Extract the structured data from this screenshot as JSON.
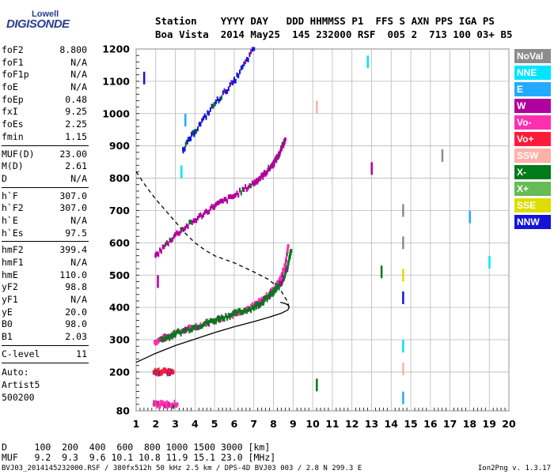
{
  "brand": {
    "top": "Lowell",
    "main": "DIGISONDE"
  },
  "header": {
    "line1": "Station    YYYY DAY   DDD HHMMSS P1  FFS S AXN PPS IGA PS",
    "line2": "Boa Vista  2014 May25  145 232000 RSF  005 2  713 100 03+ B5"
  },
  "params": {
    "group1": [
      {
        "label": "foF2",
        "value": "8.800"
      },
      {
        "label": "foF1",
        "value": "N/A"
      },
      {
        "label": "foF1p",
        "value": "N/A"
      },
      {
        "label": "foE",
        "value": "N/A"
      },
      {
        "label": "foEp",
        "value": "0.48"
      },
      {
        "label": "fxI",
        "value": "9.25"
      },
      {
        "label": "foEs",
        "value": "2.25"
      },
      {
        "label": "fmin",
        "value": "1.15"
      }
    ],
    "group2": [
      {
        "label": "MUF(D)",
        "value": "23.00"
      },
      {
        "label": "M(D)",
        "value": "2.61"
      },
      {
        "label": "D",
        "value": "N/A"
      }
    ],
    "group3": [
      {
        "label": "h`F",
        "value": "307.0"
      },
      {
        "label": "h`F2",
        "value": "307.0"
      },
      {
        "label": "h`E",
        "value": "N/A"
      },
      {
        "label": "h`Es",
        "value": "97.5"
      }
    ],
    "group4": [
      {
        "label": "hmF2",
        "value": "399.4"
      },
      {
        "label": "hmF1",
        "value": "N/A"
      },
      {
        "label": "hmE",
        "value": "110.0"
      },
      {
        "label": "yF2",
        "value": "98.8"
      },
      {
        "label": "yF1",
        "value": "N/A"
      },
      {
        "label": "yE",
        "value": "20.0"
      },
      {
        "label": "B0",
        "value": "98.0"
      },
      {
        "label": "B1",
        "value": "2.03"
      }
    ],
    "group5": [
      {
        "label": "C-level",
        "value": "11"
      }
    ],
    "auto": [
      "Auto:",
      "Artist5",
      "500200"
    ]
  },
  "legend": [
    {
      "label": "NoVal",
      "color": "#8c8c8c"
    },
    {
      "label": "NNE",
      "color": "#00e5ff"
    },
    {
      "label": "E",
      "color": "#22aaff"
    },
    {
      "label": "W",
      "color": "#b0009e"
    },
    {
      "label": "Vo-",
      "color": "#ff2fae"
    },
    {
      "label": "Vo+",
      "color": "#ff1a3a"
    },
    {
      "label": "SSW",
      "color": "#ffb0a8"
    },
    {
      "label": "X-",
      "color": "#007a1a"
    },
    {
      "label": "X+",
      "color": "#66bb55"
    },
    {
      "label": "SSE",
      "color": "#dddd00"
    },
    {
      "label": "NNW",
      "color": "#1414d8"
    }
  ],
  "bottom": {
    "line1": "D     100  200  400  600  800 1000 1500 3000 [km]",
    "line2": "MUF   9.2  9.3  9.6 10.1 10.8 11.9 15.1 23.0 [MHz]"
  },
  "footer": "BVJ03_2014145232000.RSF / 380fx512h 50 kHz 2.5 km / DPS-4D BVJ03 003 / 2.8 N 299.3 E",
  "version": "Ion2Png v. 1.3.17",
  "chart_data": {
    "type": "scatter",
    "x_ticks": [
      1,
      2,
      3,
      4,
      5,
      6,
      7,
      8,
      9,
      10,
      11,
      12,
      13,
      14,
      15,
      16,
      17,
      18,
      19,
      20
    ],
    "y_ticks": [
      80,
      200,
      300,
      400,
      500,
      600,
      700,
      800,
      900,
      1000,
      1100,
      1200
    ],
    "xlim": [
      1,
      20
    ],
    "ylim": [
      80,
      1200
    ],
    "grid": true,
    "legend_position": "right",
    "series": [
      {
        "name": "O-trace (Vo-)",
        "color": "#ff2fae",
        "x": [
          1.95,
          2.5,
          3.0,
          4.0,
          5.0,
          6.0,
          7.0,
          7.5,
          8.0,
          8.3,
          8.6,
          8.75
        ],
        "y": [
          293,
          307,
          320,
          340,
          360,
          380,
          405,
          425,
          455,
          480,
          530,
          590
        ]
      },
      {
        "name": "X-trace (X-)",
        "color": "#007a1a",
        "x": [
          2.3,
          3.0,
          4.0,
          5.0,
          6.0,
          7.0,
          7.5,
          8.0,
          8.4,
          8.7,
          8.9
        ],
        "y": [
          300,
          318,
          340,
          360,
          380,
          400,
          420,
          445,
          475,
          520,
          575
        ]
      },
      {
        "name": "2nd hop (W)",
        "color": "#b0009e",
        "x": [
          2.0,
          3.0,
          4.0,
          5.0,
          6.0,
          7.0,
          7.5,
          8.0,
          8.3,
          8.6
        ],
        "y": [
          560,
          625,
          670,
          715,
          745,
          785,
          810,
          845,
          875,
          920
        ]
      },
      {
        "name": "3rd hop (NNW)",
        "color": "#1414d8",
        "x": [
          3.4,
          4.0,
          5.0,
          6.0,
          7.0
        ],
        "y": [
          890,
          945,
          1030,
          1100,
          1200
        ]
      },
      {
        "name": "Es trace",
        "color": "#ff1a3a",
        "x": [
          1.9,
          2.2,
          2.6,
          2.9
        ],
        "y": [
          200,
          200,
          200,
          200
        ]
      },
      {
        "name": "E trace",
        "color": "#ff2fae",
        "x": [
          1.9,
          2.2,
          2.6,
          3.1
        ],
        "y": [
          100,
          100,
          100,
          100
        ]
      }
    ],
    "profile_solid": {
      "color": "#000000",
      "x": [
        1.0,
        2.0,
        3.0,
        4.0,
        5.0,
        6.0,
        7.0,
        7.8,
        8.4,
        8.73,
        8.8,
        8.73,
        8.6,
        8.35
      ],
      "y": [
        230,
        258,
        282,
        302,
        322,
        340,
        356,
        370,
        382,
        392,
        400,
        408,
        412,
        416
      ]
    },
    "profile_dashed": {
      "color": "#000000",
      "x": [
        1.0,
        1.5,
        2.0,
        2.5,
        3.0,
        3.5,
        4.0,
        4.5,
        5.0,
        6.0,
        7.0,
        7.8,
        8.4,
        8.7,
        8.8
      ],
      "y": [
        820,
        775,
        735,
        700,
        665,
        630,
        600,
        578,
        560,
        538,
        510,
        485,
        450,
        420,
        400
      ]
    }
  }
}
